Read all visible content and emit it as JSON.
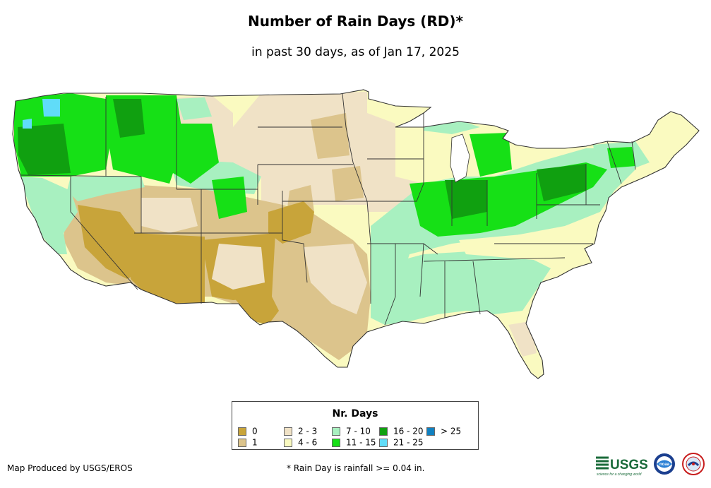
{
  "title": "Number of Rain Days (RD)*",
  "subtitle": "in past 30 days, as of Jan 17, 2025",
  "legend": {
    "title": "Nr. Days",
    "items": [
      {
        "label": "0",
        "color": "#c8a43a"
      },
      {
        "label": "1",
        "color": "#dcc48c"
      },
      {
        "label": "2 - 3",
        "color": "#f0e2c6"
      },
      {
        "label": "4 - 6",
        "color": "#fafac0"
      },
      {
        "label": "7 - 10",
        "color": "#a8f0c0"
      },
      {
        "label": "11 - 15",
        "color": "#16e016"
      },
      {
        "label": "16 - 20",
        "color": "#10a010"
      },
      {
        "label": "21 - 25",
        "color": "#60dcf8"
      },
      {
        "label": "> 25",
        "color": "#1080c0"
      }
    ]
  },
  "footer": {
    "credit": "Map Produced by USGS/EROS",
    "note": "* Rain Day is rainfall >= 0.04 in."
  },
  "logos": {
    "usgs": "USGS",
    "usgs_tagline": "science for a changing world",
    "noaa": "noaa"
  }
}
